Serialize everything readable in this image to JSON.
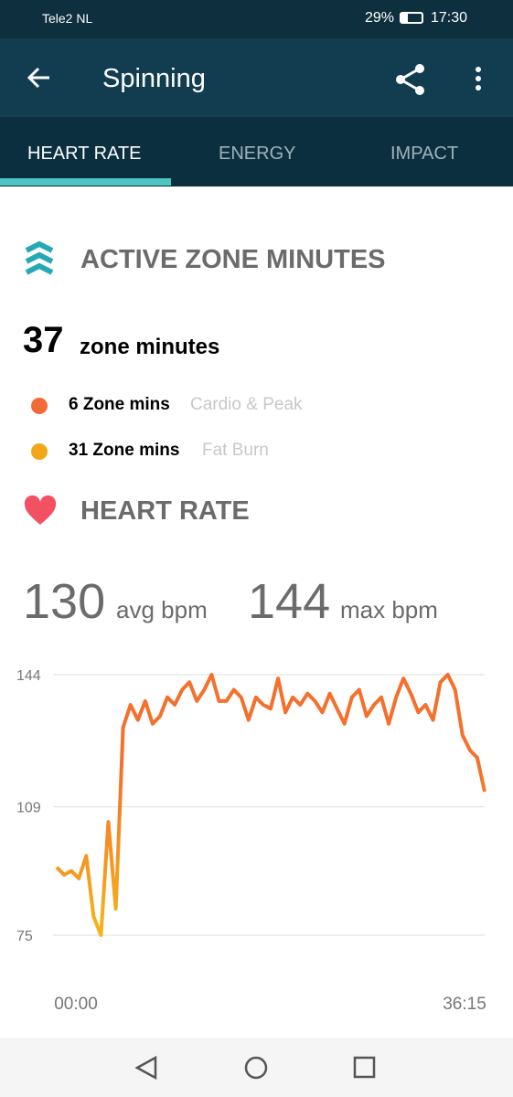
{
  "status_bar": {
    "carrier": "Tele2 NL",
    "battery": "29%",
    "time": "17:30"
  },
  "header": {
    "title": "Spinning"
  },
  "tabs": [
    "HEART RATE",
    "ENERGY",
    "IMPACT"
  ],
  "active_zone": {
    "title": "ACTIVE ZONE MINUTES",
    "total": "37",
    "total_label": "zone minutes",
    "zones": [
      {
        "value": "6 Zone mins",
        "label": "Cardio & Peak",
        "color": "#f26b36"
      },
      {
        "value": "31 Zone mins",
        "label": "Fat Burn",
        "color": "#f0a818"
      }
    ]
  },
  "heart_rate": {
    "title": "HEART RATE",
    "avg": "130",
    "avg_label": "avg bpm",
    "max": "144",
    "max_label": "max bpm"
  },
  "chart_data": {
    "type": "line",
    "color": "#f4702c",
    "color_low": "#f6b519",
    "values": [
      93,
      91,
      92,
      90,
      96,
      80,
      75,
      105,
      82,
      130,
      136,
      132,
      137,
      131,
      133,
      138,
      136,
      140,
      142,
      137,
      140,
      144,
      137,
      137,
      140,
      138,
      132,
      138,
      136,
      135,
      143,
      134,
      138,
      136,
      139,
      137,
      134,
      139,
      135,
      131,
      138,
      140,
      133,
      136,
      138,
      131,
      138,
      143,
      139,
      134,
      136,
      132,
      142,
      144,
      140,
      128,
      124,
      122,
      113
    ],
    "ylim": [
      75,
      144
    ],
    "yticks": [
      75,
      109,
      144
    ],
    "grid": true,
    "x_labels": [
      "00:00",
      "36:15"
    ]
  }
}
